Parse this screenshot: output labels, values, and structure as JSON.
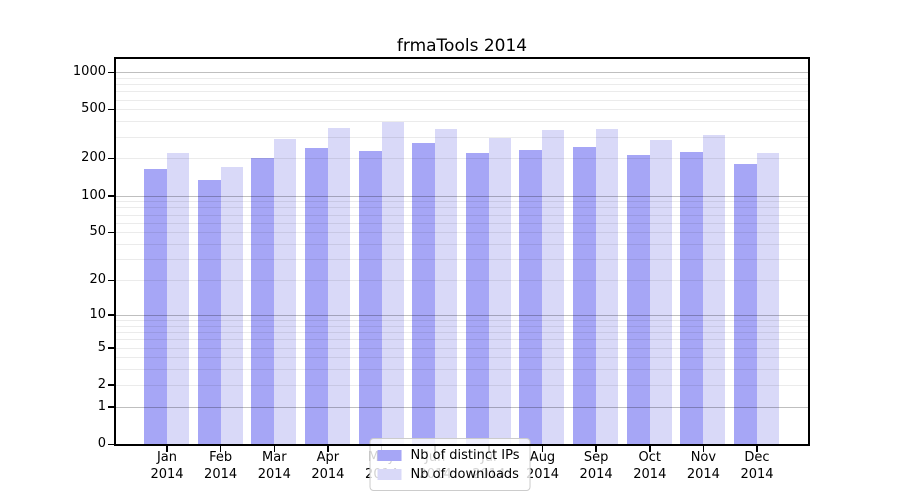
{
  "title": "frmaTools 2014",
  "chart_data": {
    "type": "bar",
    "title": "frmaTools 2014",
    "categories": [
      "Jan 2014",
      "Feb 2014",
      "Mar 2014",
      "Apr 2014",
      "May 2014",
      "Jun 2014",
      "Jul 2014",
      "Aug 2014",
      "Sep 2014",
      "Oct 2014",
      "Nov 2014",
      "Dec 2014"
    ],
    "series": [
      {
        "name": "Nb of distinct IPs",
        "color": "#a6a6f6",
        "values": [
          165,
          135,
          200,
          245,
          230,
          265,
          220,
          235,
          250,
          215,
          225,
          180
        ]
      },
      {
        "name": "Nb of downloads",
        "color": "#d9d9f8",
        "values": [
          220,
          170,
          290,
          355,
          395,
          345,
          295,
          340,
          348,
          280,
          310,
          220
        ]
      }
    ],
    "xlabel": "",
    "ylabel": "",
    "y_axis": {
      "scale": "log10(value+1)",
      "tick_values": [
        0,
        1,
        2,
        5,
        10,
        20,
        50,
        100,
        200,
        500,
        1000
      ],
      "ylim": [
        0,
        1270
      ],
      "major_grid_values": [
        1,
        10,
        100,
        1000
      ],
      "minor_grid_values": [
        2,
        3,
        4,
        5,
        6,
        7,
        8,
        9,
        20,
        30,
        40,
        50,
        60,
        70,
        80,
        90,
        200,
        300,
        400,
        500,
        600,
        700,
        800,
        900
      ]
    },
    "grid": "on, drawn over bars",
    "legend": {
      "position": "lower-center",
      "entries": [
        "Nb of distinct IPs",
        "Nb of downloads"
      ]
    }
  }
}
